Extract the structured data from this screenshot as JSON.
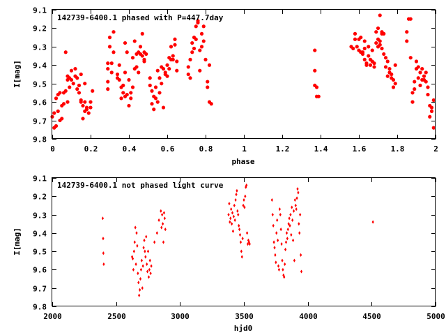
{
  "colors": {
    "points": "#ff0000",
    "axes": "#000000",
    "background": "#ffffff"
  },
  "chart_data": [
    {
      "type": "scatter",
      "title": "142739-6400.1 phased with P=447.7day",
      "xlabel": "phase",
      "ylabel": "I[mag]",
      "xlim": [
        0,
        2
      ],
      "ylim": [
        9.1,
        9.8
      ],
      "y_inverted": true,
      "grid": false,
      "marker": "filled-circle",
      "xticks": [
        "0",
        "0.2",
        "0.4",
        "0.6",
        "0.8",
        "1",
        "1.2",
        "1.4",
        "1.6",
        "1.8",
        "2"
      ],
      "yticks": [
        "9.1",
        "9.2",
        "9.3",
        "9.4",
        "9.5",
        "9.6",
        "9.7",
        "9.8"
      ],
      "points": [
        [
          0.0,
          9.68
        ],
        [
          0.01,
          9.74
        ],
        [
          0.01,
          9.66
        ],
        [
          0.02,
          9.73
        ],
        [
          0.02,
          9.58
        ],
        [
          0.03,
          9.65
        ],
        [
          0.03,
          9.56
        ],
        [
          0.04,
          9.55
        ],
        [
          0.04,
          9.7
        ],
        [
          0.05,
          9.62
        ],
        [
          0.05,
          9.69
        ],
        [
          0.06,
          9.55
        ],
        [
          0.06,
          9.61
        ],
        [
          0.07,
          9.33
        ],
        [
          0.07,
          9.54
        ],
        [
          0.08,
          9.48
        ],
        [
          0.08,
          9.46
        ],
        [
          0.08,
          9.6
        ],
        [
          0.09,
          9.52
        ],
        [
          0.09,
          9.47
        ],
        [
          0.1,
          9.43
        ],
        [
          0.1,
          9.48
        ],
        [
          0.11,
          9.5
        ],
        [
          0.12,
          9.46
        ],
        [
          0.12,
          9.42
        ],
        [
          0.13,
          9.47
        ],
        [
          0.13,
          9.53
        ],
        [
          0.14,
          9.55
        ],
        [
          0.14,
          9.51
        ],
        [
          0.15,
          9.59
        ],
        [
          0.15,
          9.45
        ],
        [
          0.15,
          9.6
        ],
        [
          0.16,
          9.62
        ],
        [
          0.16,
          9.69
        ],
        [
          0.17,
          9.65
        ],
        [
          0.17,
          9.5
        ],
        [
          0.17,
          9.6
        ],
        [
          0.18,
          9.63
        ],
        [
          0.18,
          9.64
        ],
        [
          0.19,
          9.66
        ],
        [
          0.2,
          9.63
        ],
        [
          0.2,
          9.6
        ],
        [
          0.21,
          9.54
        ],
        [
          0.29,
          9.42
        ],
        [
          0.29,
          9.39
        ],
        [
          0.29,
          9.49
        ],
        [
          0.29,
          9.53
        ],
        [
          0.3,
          9.3
        ],
        [
          0.3,
          9.25
        ],
        [
          0.31,
          9.39
        ],
        [
          0.31,
          9.44
        ],
        [
          0.32,
          9.22
        ],
        [
          0.32,
          9.33
        ],
        [
          0.34,
          9.45
        ],
        [
          0.34,
          9.47
        ],
        [
          0.35,
          9.4
        ],
        [
          0.35,
          9.48
        ],
        [
          0.36,
          9.52
        ],
        [
          0.36,
          9.58
        ],
        [
          0.37,
          9.55
        ],
        [
          0.37,
          9.51
        ],
        [
          0.38,
          9.44
        ],
        [
          0.38,
          9.28
        ],
        [
          0.38,
          9.57
        ],
        [
          0.39,
          9.56
        ],
        [
          0.39,
          9.33
        ],
        [
          0.4,
          9.62
        ],
        [
          0.4,
          9.48
        ],
        [
          0.41,
          9.58
        ],
        [
          0.41,
          9.55
        ],
        [
          0.42,
          9.52
        ],
        [
          0.42,
          9.36
        ],
        [
          0.43,
          9.27
        ],
        [
          0.43,
          9.42
        ],
        [
          0.44,
          9.34
        ],
        [
          0.44,
          9.41
        ],
        [
          0.45,
          9.44
        ],
        [
          0.45,
          9.33
        ],
        [
          0.46,
          9.34
        ],
        [
          0.46,
          9.3
        ],
        [
          0.47,
          9.23
        ],
        [
          0.47,
          9.35
        ],
        [
          0.48,
          9.37
        ],
        [
          0.48,
          9.38
        ],
        [
          0.48,
          9.33
        ],
        [
          0.49,
          9.34
        ],
        [
          0.51,
          9.51
        ],
        [
          0.51,
          9.47
        ],
        [
          0.52,
          9.54
        ],
        [
          0.52,
          9.61
        ],
        [
          0.53,
          9.57
        ],
        [
          0.53,
          9.64
        ],
        [
          0.54,
          9.58
        ],
        [
          0.54,
          9.52
        ],
        [
          0.55,
          9.6
        ],
        [
          0.55,
          9.43
        ],
        [
          0.56,
          9.55
        ],
        [
          0.56,
          9.47
        ],
        [
          0.57,
          9.41
        ],
        [
          0.57,
          9.5
        ],
        [
          0.58,
          9.42
        ],
        [
          0.58,
          9.63
        ],
        [
          0.59,
          9.45
        ],
        [
          0.59,
          9.44
        ],
        [
          0.6,
          9.46
        ],
        [
          0.6,
          9.4
        ],
        [
          0.61,
          9.36
        ],
        [
          0.61,
          9.42
        ],
        [
          0.62,
          9.37
        ],
        [
          0.62,
          9.3
        ],
        [
          0.63,
          9.35
        ],
        [
          0.63,
          9.37
        ],
        [
          0.64,
          9.29
        ],
        [
          0.64,
          9.26
        ],
        [
          0.65,
          9.43
        ],
        [
          0.65,
          9.38
        ],
        [
          0.71,
          9.45
        ],
        [
          0.71,
          9.41
        ],
        [
          0.72,
          9.47
        ],
        [
          0.72,
          9.37
        ],
        [
          0.73,
          9.33
        ],
        [
          0.73,
          9.28
        ],
        [
          0.74,
          9.31
        ],
        [
          0.74,
          9.25
        ],
        [
          0.75,
          9.26
        ],
        [
          0.75,
          9.19
        ],
        [
          0.76,
          9.16
        ],
        [
          0.76,
          9.17
        ],
        [
          0.77,
          9.43
        ],
        [
          0.77,
          9.32
        ],
        [
          0.78,
          9.3
        ],
        [
          0.78,
          9.23
        ],
        [
          0.79,
          9.27
        ],
        [
          0.79,
          9.19
        ],
        [
          0.8,
          9.37
        ],
        [
          0.81,
          9.52
        ],
        [
          0.81,
          9.49
        ],
        [
          0.82,
          9.4
        ],
        [
          0.82,
          9.6
        ],
        [
          0.83,
          9.61
        ],
        [
          1.37,
          9.32
        ],
        [
          1.37,
          9.43
        ],
        [
          1.37,
          9.51
        ],
        [
          1.38,
          9.52
        ],
        [
          1.38,
          9.57
        ],
        [
          1.39,
          9.57
        ],
        [
          1.56,
          9.3
        ],
        [
          1.57,
          9.31
        ],
        [
          1.58,
          9.23
        ],
        [
          1.58,
          9.26
        ],
        [
          1.59,
          9.3
        ],
        [
          1.6,
          9.32
        ],
        [
          1.6,
          9.26
        ],
        [
          1.61,
          9.33
        ],
        [
          1.61,
          9.25
        ],
        [
          1.62,
          9.34
        ],
        [
          1.62,
          9.33
        ],
        [
          1.63,
          9.31
        ],
        [
          1.63,
          9.27
        ],
        [
          1.63,
          9.37
        ],
        [
          1.64,
          9.39
        ],
        [
          1.64,
          9.4
        ],
        [
          1.65,
          9.35
        ],
        [
          1.65,
          9.3
        ],
        [
          1.66,
          9.4
        ],
        [
          1.66,
          9.37
        ],
        [
          1.67,
          9.38
        ],
        [
          1.67,
          9.32
        ],
        [
          1.68,
          9.39
        ],
        [
          1.68,
          9.41
        ],
        [
          1.69,
          9.22
        ],
        [
          1.69,
          9.28
        ],
        [
          1.7,
          9.3
        ],
        [
          1.7,
          9.2
        ],
        [
          1.7,
          9.26
        ],
        [
          1.71,
          9.27
        ],
        [
          1.71,
          9.29
        ],
        [
          1.71,
          9.13
        ],
        [
          1.72,
          9.23
        ],
        [
          1.72,
          9.22
        ],
        [
          1.72,
          9.31
        ],
        [
          1.73,
          9.23
        ],
        [
          1.73,
          9.34
        ],
        [
          1.74,
          9.36
        ],
        [
          1.74,
          9.41
        ],
        [
          1.75,
          9.38
        ],
        [
          1.75,
          9.46
        ],
        [
          1.76,
          9.44
        ],
        [
          1.76,
          9.42
        ],
        [
          1.77,
          9.45
        ],
        [
          1.77,
          9.47
        ],
        [
          1.78,
          9.48
        ],
        [
          1.78,
          9.52
        ],
        [
          1.79,
          9.4
        ],
        [
          1.79,
          9.5
        ],
        [
          1.85,
          9.27
        ],
        [
          1.85,
          9.22
        ],
        [
          1.86,
          9.15
        ],
        [
          1.87,
          9.15
        ],
        [
          1.87,
          9.36
        ],
        [
          1.88,
          9.6
        ],
        [
          1.88,
          9.55
        ],
        [
          1.89,
          9.49
        ],
        [
          1.89,
          9.53
        ],
        [
          1.9,
          9.42
        ],
        [
          1.9,
          9.38
        ],
        [
          1.91,
          9.47
        ],
        [
          1.91,
          9.41
        ],
        [
          1.92,
          9.44
        ],
        [
          1.92,
          9.51
        ],
        [
          1.93,
          9.42
        ],
        [
          1.93,
          9.48
        ],
        [
          1.94,
          9.46
        ],
        [
          1.94,
          9.48
        ],
        [
          1.95,
          9.49
        ],
        [
          1.95,
          9.44
        ],
        [
          1.96,
          9.56
        ],
        [
          1.96,
          9.52
        ],
        [
          1.97,
          9.62
        ],
        [
          1.97,
          9.68
        ],
        [
          1.98,
          9.63
        ],
        [
          1.98,
          9.65
        ],
        [
          1.99,
          9.74
        ],
        [
          1.99,
          9.59
        ]
      ]
    },
    {
      "type": "scatter",
      "title": "142739-6400.1 not phased light curve",
      "xlabel": "hjd0",
      "ylabel": "I[mag]",
      "xlim": [
        2000,
        5000
      ],
      "ylim": [
        9.1,
        9.8
      ],
      "y_inverted": true,
      "grid": false,
      "marker": "small-diamond",
      "xticks": [
        "2000",
        "2500",
        "3000",
        "3500",
        "4000",
        "4500",
        "5000"
      ],
      "yticks": [
        "9.1",
        "9.2",
        "9.3",
        "9.4",
        "9.5",
        "9.6",
        "9.7",
        "9.8"
      ],
      "points": [
        [
          2395,
          9.32
        ],
        [
          2398,
          9.43
        ],
        [
          2400,
          9.51
        ],
        [
          2403,
          9.57
        ],
        [
          2625,
          9.53
        ],
        [
          2630,
          9.54
        ],
        [
          2635,
          9.6
        ],
        [
          2640,
          9.5
        ],
        [
          2645,
          9.45
        ],
        [
          2650,
          9.37
        ],
        [
          2655,
          9.57
        ],
        [
          2660,
          9.4
        ],
        [
          2665,
          9.47
        ],
        [
          2670,
          9.62
        ],
        [
          2675,
          9.67
        ],
        [
          2680,
          9.74
        ],
        [
          2685,
          9.71
        ],
        [
          2690,
          9.65
        ],
        [
          2695,
          9.6
        ],
        [
          2700,
          9.55
        ],
        [
          2705,
          9.7
        ],
        [
          2710,
          9.58
        ],
        [
          2715,
          9.48
        ],
        [
          2720,
          9.44
        ],
        [
          2725,
          9.5
        ],
        [
          2730,
          9.53
        ],
        [
          2735,
          9.42
        ],
        [
          2740,
          9.57
        ],
        [
          2745,
          9.61
        ],
        [
          2750,
          9.5
        ],
        [
          2755,
          9.64
        ],
        [
          2760,
          9.6
        ],
        [
          2765,
          9.55
        ],
        [
          2770,
          9.62
        ],
        [
          2775,
          9.58
        ],
        [
          2800,
          9.45
        ],
        [
          2820,
          9.4
        ],
        [
          2835,
          9.33
        ],
        [
          2850,
          9.28
        ],
        [
          2855,
          9.37
        ],
        [
          2860,
          9.3
        ],
        [
          2865,
          9.35
        ],
        [
          2870,
          9.45
        ],
        [
          2875,
          9.29
        ],
        [
          2880,
          9.32
        ],
        [
          2885,
          9.38
        ],
        [
          3380,
          9.3
        ],
        [
          3385,
          9.24
        ],
        [
          3390,
          9.34
        ],
        [
          3395,
          9.32
        ],
        [
          3400,
          9.27
        ],
        [
          3405,
          9.35
        ],
        [
          3410,
          9.29
        ],
        [
          3415,
          9.39
        ],
        [
          3420,
          9.31
        ],
        [
          3425,
          9.25
        ],
        [
          3430,
          9.33
        ],
        [
          3435,
          9.22
        ],
        [
          3440,
          9.19
        ],
        [
          3445,
          9.17
        ],
        [
          3450,
          9.28
        ],
        [
          3455,
          9.3
        ],
        [
          3460,
          9.36
        ],
        [
          3465,
          9.38
        ],
        [
          3470,
          9.41
        ],
        [
          3475,
          9.45
        ],
        [
          3480,
          9.5
        ],
        [
          3485,
          9.53
        ],
        [
          3490,
          9.43
        ],
        [
          3495,
          9.25
        ],
        [
          3500,
          9.22
        ],
        [
          3505,
          9.26
        ],
        [
          3510,
          9.2
        ],
        [
          3515,
          9.15
        ],
        [
          3520,
          9.14
        ],
        [
          3525,
          9.4
        ],
        [
          3530,
          9.46
        ],
        [
          3535,
          9.44
        ],
        [
          3540,
          9.45
        ],
        [
          3545,
          9.46
        ],
        [
          3720,
          9.22
        ],
        [
          3725,
          9.3
        ],
        [
          3730,
          9.36
        ],
        [
          3735,
          9.45
        ],
        [
          3740,
          9.48
        ],
        [
          3745,
          9.52
        ],
        [
          3750,
          9.56
        ],
        [
          3755,
          9.4
        ],
        [
          3760,
          9.33
        ],
        [
          3765,
          9.44
        ],
        [
          3770,
          9.58
        ],
        [
          3775,
          9.6
        ],
        [
          3780,
          9.27
        ],
        [
          3785,
          9.3
        ],
        [
          3790,
          9.38
        ],
        [
          3795,
          9.46
        ],
        [
          3800,
          9.55
        ],
        [
          3805,
          9.6
        ],
        [
          3810,
          9.63
        ],
        [
          3815,
          9.64
        ],
        [
          3820,
          9.57
        ],
        [
          3825,
          9.49
        ],
        [
          3830,
          9.45
        ],
        [
          3835,
          9.4
        ],
        [
          3840,
          9.43
        ],
        [
          3845,
          9.38
        ],
        [
          3850,
          9.35
        ],
        [
          3855,
          9.32
        ],
        [
          3860,
          9.36
        ],
        [
          3865,
          9.3
        ],
        [
          3870,
          9.41
        ],
        [
          3875,
          9.26
        ],
        [
          3880,
          9.33
        ],
        [
          3885,
          9.44
        ],
        [
          3890,
          9.28
        ],
        [
          3895,
          9.55
        ],
        [
          3900,
          9.22
        ],
        [
          3905,
          9.25
        ],
        [
          3910,
          9.27
        ],
        [
          3915,
          9.21
        ],
        [
          3920,
          9.16
        ],
        [
          3925,
          9.18
        ],
        [
          3930,
          9.35
        ],
        [
          3935,
          9.4
        ],
        [
          3940,
          9.3
        ],
        [
          3945,
          9.52
        ],
        [
          3950,
          9.61
        ],
        [
          4510,
          9.34
        ]
      ]
    }
  ]
}
